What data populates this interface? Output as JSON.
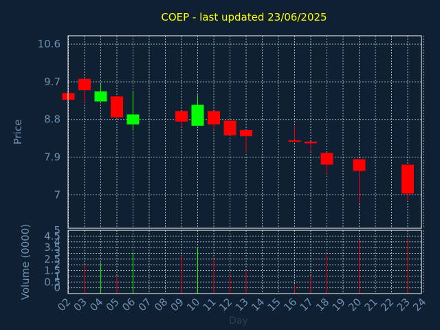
{
  "chart_data": {
    "type": "candlestick",
    "title": "COEP - last updated 23/06/2025",
    "xlabel": "Day",
    "x_ticks": [
      "02",
      "03",
      "04",
      "05",
      "06",
      "07",
      "08",
      "09",
      "10",
      "11",
      "12",
      "13",
      "14",
      "15",
      "16",
      "17",
      "18",
      "19",
      "20",
      "21",
      "22",
      "23",
      "24"
    ],
    "price_panel": {
      "ylabel": "Price",
      "yticks": [
        "10.6",
        "9.7",
        "8.8",
        "7.9",
        "7"
      ],
      "ylim": [
        6.2,
        10.8
      ],
      "candles": [
        {
          "day": "02",
          "open": 9.43,
          "close": 9.27,
          "high": 9.43,
          "low": 9.27
        },
        {
          "day": "03",
          "open": 9.77,
          "close": 9.5,
          "high": 9.77,
          "low": 9.2
        },
        {
          "day": "04",
          "open": 9.23,
          "close": 9.47,
          "high": 9.65,
          "low": 9.23
        },
        {
          "day": "05",
          "open": 9.35,
          "close": 8.85,
          "high": 9.35,
          "low": 8.85
        },
        {
          "day": "06",
          "open": 8.68,
          "close": 8.92,
          "high": 9.47,
          "low": 8.53
        },
        {
          "day": "09",
          "open": 9.0,
          "close": 8.75,
          "high": 9.0,
          "low": 8.62
        },
        {
          "day": "10",
          "open": 8.65,
          "close": 9.15,
          "high": 9.38,
          "low": 8.65
        },
        {
          "day": "11",
          "open": 9.0,
          "close": 8.68,
          "high": 9.0,
          "low": 8.55
        },
        {
          "day": "12",
          "open": 8.77,
          "close": 8.42,
          "high": 8.77,
          "low": 8.42
        },
        {
          "day": "13",
          "open": 8.55,
          "close": 8.4,
          "high": 8.55,
          "low": 8.0
        },
        {
          "day": "16",
          "open": 8.3,
          "close": 8.28,
          "high": 8.65,
          "low": 8.25
        },
        {
          "day": "17",
          "open": 8.27,
          "close": 8.23,
          "high": 8.27,
          "low": 8.03
        },
        {
          "day": "18",
          "open": 8.0,
          "close": 7.72,
          "high": 8.0,
          "low": 7.5
        },
        {
          "day": "20",
          "open": 7.85,
          "close": 7.57,
          "high": 7.85,
          "low": 6.8
        },
        {
          "day": "23",
          "open": 7.72,
          "close": 7.03,
          "high": 7.72,
          "low": 6.87
        }
      ]
    },
    "volume_panel": {
      "ylabel": "Volume (0000)",
      "yticks": [
        "0",
        "0.5",
        "1",
        "1.5",
        "2",
        "2.5",
        "3",
        "3.5",
        "4",
        "4.5",
        "5"
      ],
      "ylim": [
        -0.5,
        5
      ],
      "bars": [
        {
          "day": "03",
          "value": 2.0,
          "direction": "down"
        },
        {
          "day": "04",
          "value": 2.2,
          "direction": "up"
        },
        {
          "day": "05",
          "value": 1.0,
          "direction": "down"
        },
        {
          "day": "06",
          "value": 3.05,
          "direction": "up"
        },
        {
          "day": "09",
          "value": 2.8,
          "direction": "down"
        },
        {
          "day": "10",
          "value": 3.55,
          "direction": "up"
        },
        {
          "day": "11",
          "value": 2.5,
          "direction": "down"
        },
        {
          "day": "12",
          "value": 1.1,
          "direction": "down"
        },
        {
          "day": "13",
          "value": 1.5,
          "direction": "down"
        },
        {
          "day": "16",
          "value": 0.3,
          "direction": "down"
        },
        {
          "day": "17",
          "value": 1.05,
          "direction": "down"
        },
        {
          "day": "18",
          "value": 2.9,
          "direction": "down"
        },
        {
          "day": "20",
          "value": 4.2,
          "direction": "down"
        },
        {
          "day": "23",
          "value": 4.3,
          "direction": "down"
        }
      ]
    },
    "grid": true,
    "colors": {
      "background": "#0f2033",
      "up": "#00ff00",
      "down": "#ff0000",
      "grid": "#ffffff",
      "title": "#ffff00",
      "axis_text": "#6f8fb0"
    }
  }
}
